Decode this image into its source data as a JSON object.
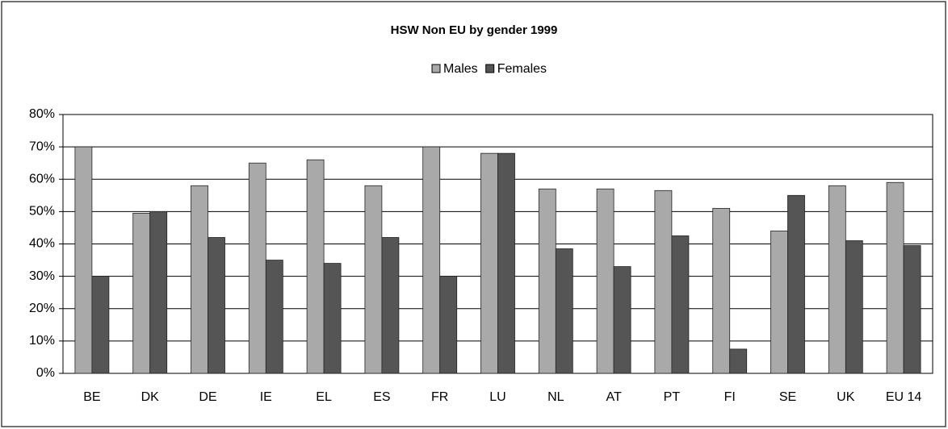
{
  "chart_data": {
    "type": "bar",
    "title": "HSW Non EU by gender 1999",
    "categories": [
      "BE",
      "DK",
      "DE",
      "IE",
      "EL",
      "ES",
      "FR",
      "LU",
      "NL",
      "AT",
      "PT",
      "FI",
      "SE",
      "UK",
      "EU 14"
    ],
    "series": [
      {
        "name": "Males",
        "color": "#a9a9a9",
        "values": [
          70,
          49.5,
          58,
          65,
          66,
          58,
          70,
          68,
          57,
          57,
          56.5,
          51,
          44,
          58,
          59
        ]
      },
      {
        "name": "Females",
        "color": "#555555",
        "values": [
          30,
          50,
          42,
          35,
          34,
          42,
          30,
          68,
          38.5,
          33,
          42.5,
          7.5,
          55,
          41,
          39.5
        ]
      }
    ],
    "ylim": [
      0,
      80
    ],
    "yticks": [
      {
        "value": 0,
        "label": "0%"
      },
      {
        "value": 10,
        "label": "10%"
      },
      {
        "value": 20,
        "label": "20%"
      },
      {
        "value": 30,
        "label": "30%"
      },
      {
        "value": 40,
        "label": "40%"
      },
      {
        "value": 50,
        "label": "50%"
      },
      {
        "value": 60,
        "label": "60%"
      },
      {
        "value": 70,
        "label": "70%"
      },
      {
        "value": 80,
        "label": "80%"
      }
    ],
    "grid": true,
    "legend": "top"
  }
}
